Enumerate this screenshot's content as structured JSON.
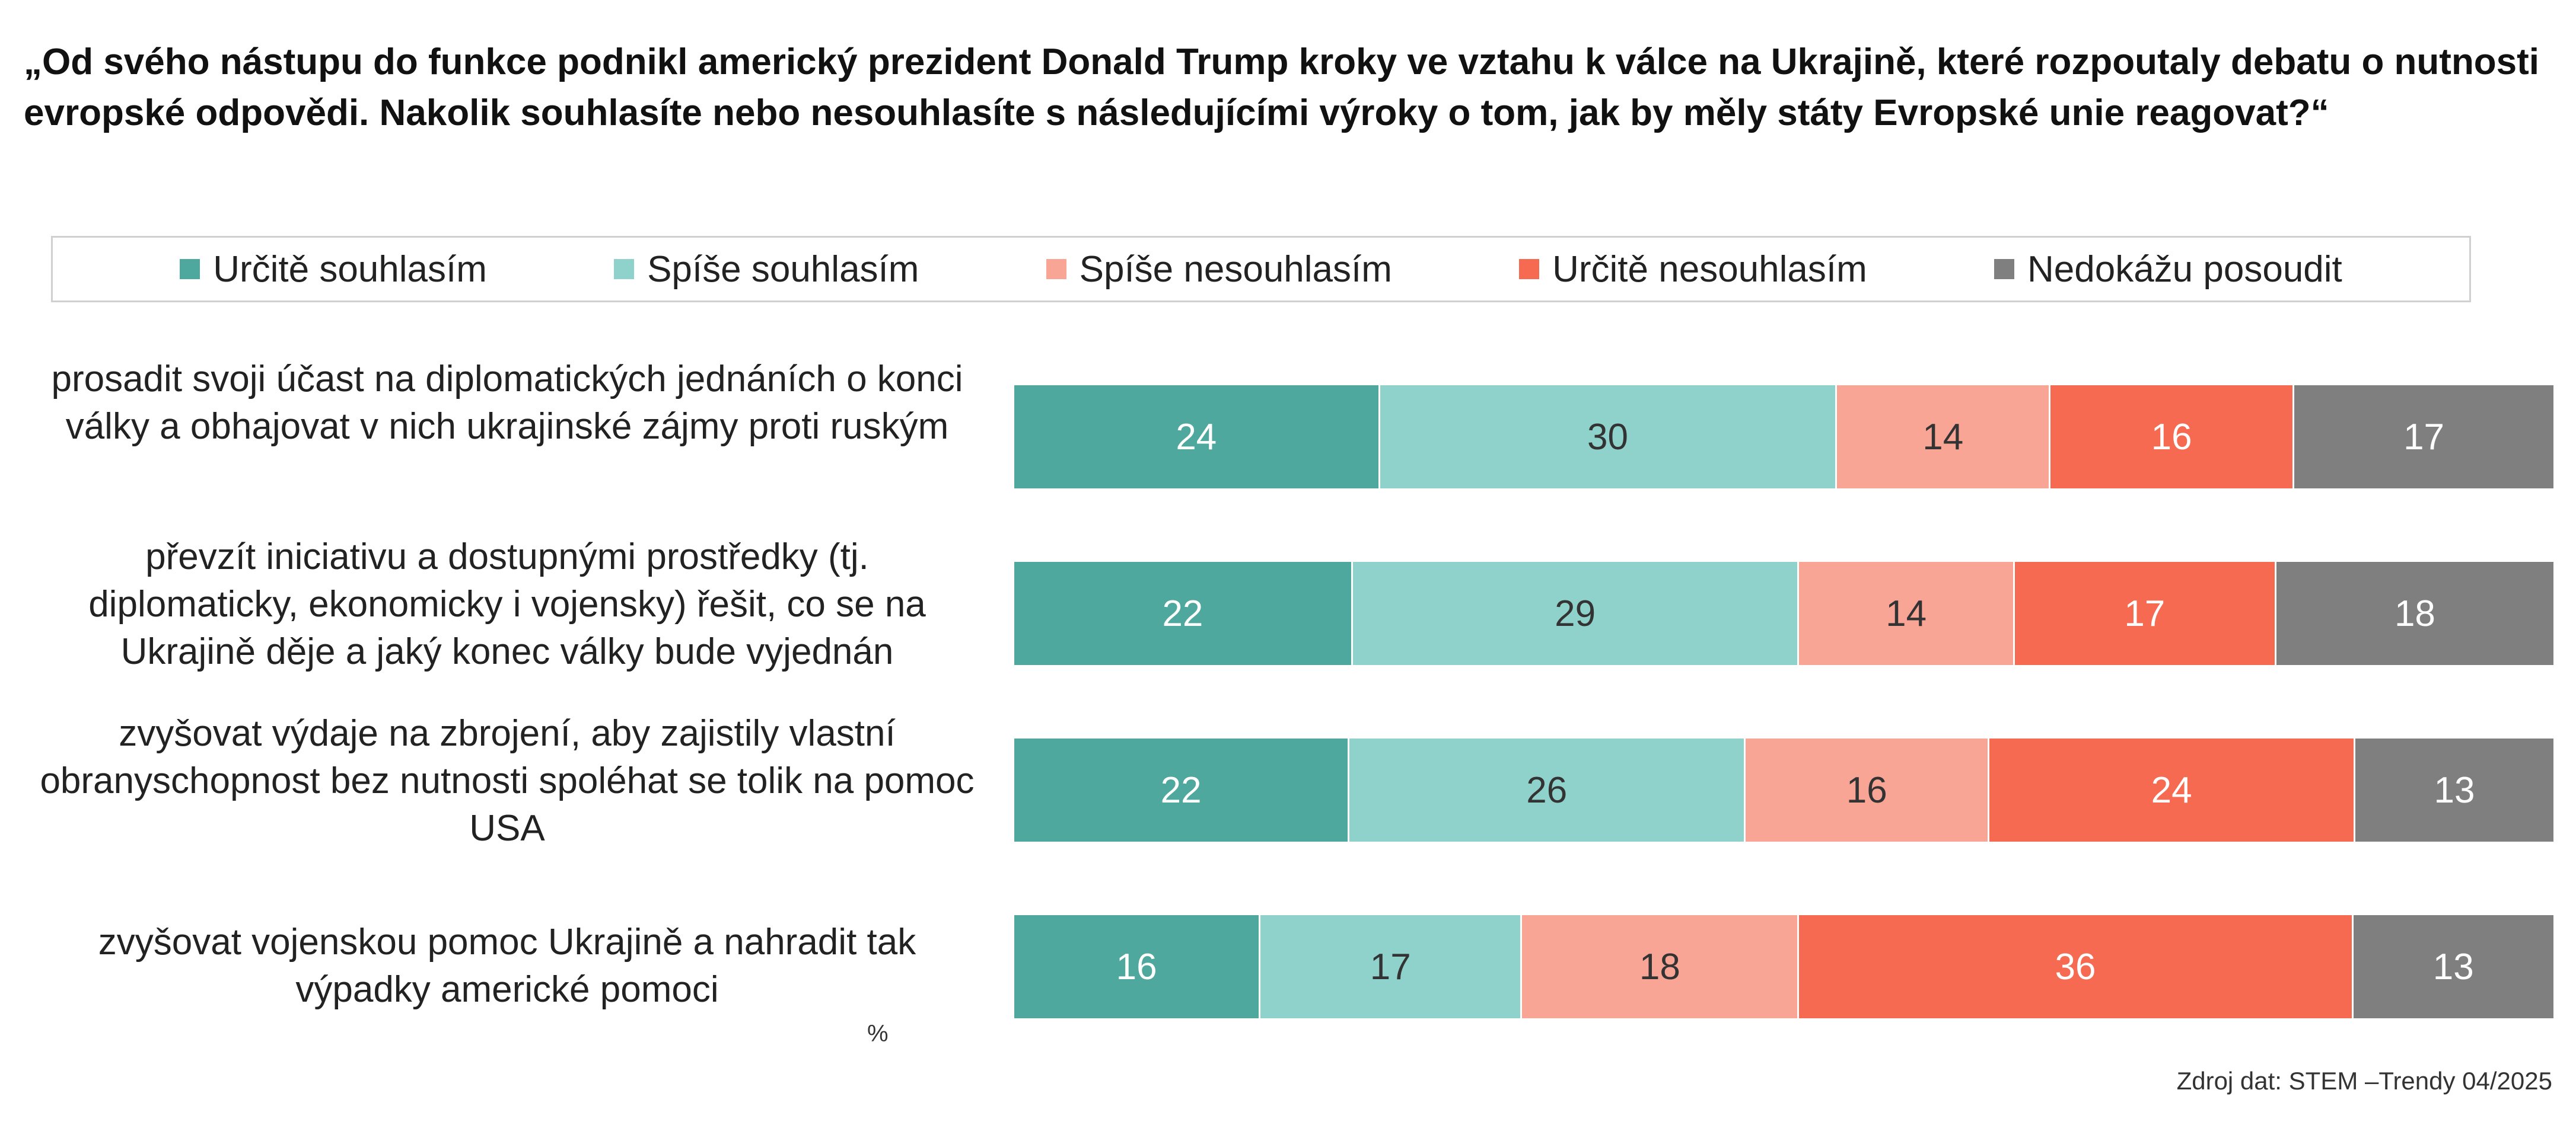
{
  "title": "„Od svého nástupu do funkce podnikl americký prezident Donald Trump kroky ve vztahu k válce na Ukrajině, které rozpoutaly debatu o nutnosti evropské odpovědi. Nakolik souhlasíte nebo nesouhlasíte s následujícími výroky o tom, jak by měly státy Evropské unie reagovat?“",
  "unit_label": "%",
  "source": "Zdroj dat: STEM –Trendy 04/2025",
  "chart_data": {
    "type": "bar",
    "orientation": "horizontal",
    "stacked": true,
    "legend_position": "top",
    "grid": false,
    "categories": [
      "prosadit svoji účast na diplomatických jednáních o konci války a obhajovat v nich ukrajinské zájmy proti ruským",
      "převzít iniciativu a dostupnými prostředky (tj. diplomaticky, ekonomicky i vojensky) řešit, co se na Ukrajině děje a jaký konec války bude vyjednán",
      "zvyšovat výdaje na zbrojení, aby zajistily vlastní obranyschopnost bez nutnosti spoléhat se tolik na pomoc USA",
      "zvyšovat vojenskou pomoc Ukrajině a nahradit tak výpadky americké pomoci"
    ],
    "series": [
      {
        "name": "Určitě souhlasím",
        "color": "#4fa89e",
        "text_color": "#ffffff",
        "values": [
          24,
          22,
          22,
          16
        ]
      },
      {
        "name": "Spíše souhlasím",
        "color": "#8ed2cb",
        "text_color": "#333333",
        "values": [
          30,
          29,
          26,
          17
        ]
      },
      {
        "name": "Spíše nesouhlasím",
        "color": "#f9a596",
        "text_color": "#333333",
        "values": [
          14,
          14,
          16,
          18
        ]
      },
      {
        "name": "Určitě nesouhlasím",
        "color": "#f56a50",
        "text_color": "#ffffff",
        "values": [
          16,
          17,
          24,
          36
        ]
      },
      {
        "name": "Nedokážu posoudit",
        "color": "#7f7f7f",
        "text_color": "#ffffff",
        "values": [
          17,
          18,
          13,
          13
        ]
      }
    ]
  }
}
